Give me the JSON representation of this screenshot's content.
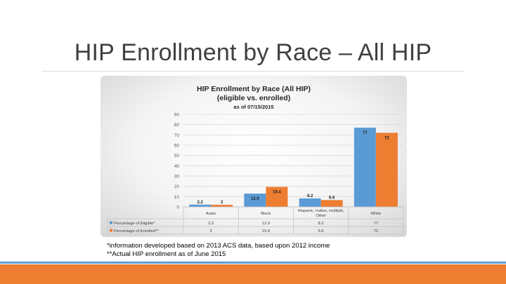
{
  "slide": {
    "title": "HIP Enrollment by Race – All HIP",
    "footnotes": [
      "*information developed based on 2013 ACS data, based upon 2012 income",
      "**Actual HIP enrollment as of June 2015"
    ]
  },
  "chart_data": {
    "type": "bar",
    "title": "HIP Enrollment by Race (All HIP)",
    "title_line2": "(eligible vs. enrolled)",
    "subtitle": "as of 07/15/2015",
    "categories": [
      "Asian",
      "Black",
      "Hispanic, Indian, multiple, Other",
      "White"
    ],
    "series": [
      {
        "name": "Percentage of Eligible*",
        "color": "#5b9bd5",
        "values": [
          2.2,
          12.9,
          8.2,
          77
        ]
      },
      {
        "name": "Percentage of Enrolled**",
        "color": "#ed7d31",
        "values": [
          2,
          19.4,
          6.6,
          72
        ]
      }
    ],
    "yticks": [
      "0",
      "10",
      "20",
      "30",
      "40",
      "50",
      "60",
      "70",
      "80",
      "90"
    ],
    "ylim": [
      0,
      90
    ],
    "grid": true,
    "legend": "data-table",
    "value_labels": [
      [
        "2.2",
        "12.9",
        "8.2",
        "77"
      ],
      [
        "2",
        "19.4",
        "6.6",
        "72"
      ]
    ]
  }
}
